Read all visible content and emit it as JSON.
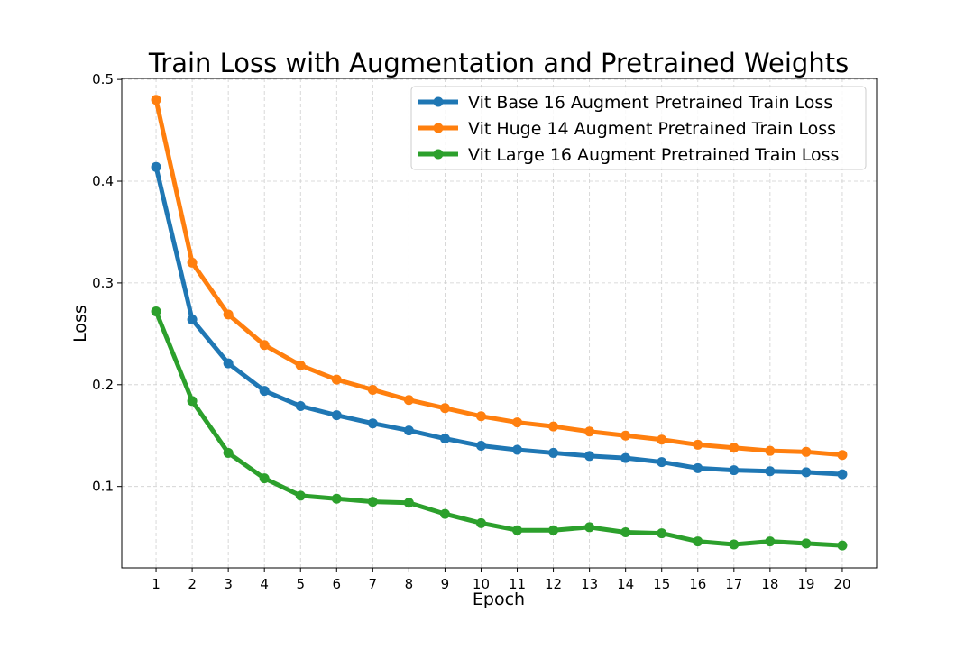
{
  "chart_data": {
    "type": "line",
    "title": "Train Loss with Augmentation and Pretrained Weights",
    "xlabel": "Epoch",
    "ylabel": "Loss",
    "x": [
      1,
      2,
      3,
      4,
      5,
      6,
      7,
      8,
      9,
      10,
      11,
      12,
      13,
      14,
      15,
      16,
      17,
      18,
      19,
      20
    ],
    "xlim": [
      0.05,
      20.95
    ],
    "ylim": [
      0.02,
      0.501
    ],
    "yticks": [
      0.1,
      0.2,
      0.3,
      0.4,
      0.5
    ],
    "ytick_labels": [
      "0.1",
      "0.2",
      "0.3",
      "0.4",
      "0.5"
    ],
    "grid": true,
    "legend_position": "top-right",
    "series": [
      {
        "name": "Vit Base 16 Augment Pretrained Train Loss",
        "color": "#1f77b4",
        "values": [
          0.414,
          0.264,
          0.221,
          0.194,
          0.179,
          0.17,
          0.162,
          0.155,
          0.147,
          0.14,
          0.136,
          0.133,
          0.13,
          0.128,
          0.124,
          0.118,
          0.116,
          0.115,
          0.114,
          0.112
        ]
      },
      {
        "name": "Vit Huge 14 Augment Pretrained Train Loss",
        "color": "#ff7f0e",
        "values": [
          0.48,
          0.32,
          0.269,
          0.239,
          0.219,
          0.205,
          0.195,
          0.185,
          0.177,
          0.169,
          0.163,
          0.159,
          0.154,
          0.15,
          0.146,
          0.141,
          0.138,
          0.135,
          0.134,
          0.131
        ]
      },
      {
        "name": "Vit Large 16 Augment Pretrained Train Loss",
        "color": "#2ca02c",
        "values": [
          0.272,
          0.184,
          0.133,
          0.108,
          0.091,
          0.088,
          0.085,
          0.084,
          0.073,
          0.064,
          0.057,
          0.057,
          0.06,
          0.055,
          0.054,
          0.046,
          0.043,
          0.046,
          0.044,
          0.042
        ]
      }
    ]
  }
}
